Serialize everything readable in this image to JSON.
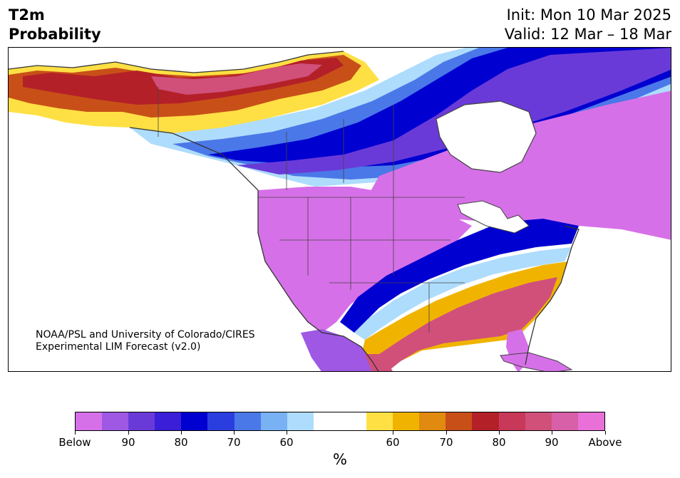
{
  "header": {
    "title_line1": "T2m",
    "title_line2": "Probability",
    "init": "Init: Mon 10 Mar 2025",
    "valid": "Valid: 12 Mar – 18 Mar"
  },
  "map": {
    "credit_line1": "NOAA/PSL and University of Colorado/CIRES",
    "credit_line2": "Experimental LIM Forecast (v2.0)",
    "region": "North America",
    "land_colors": {
      "below_high": "#d670e8",
      "below_mid": "#9e58e4",
      "below_low": "#6a3ad8",
      "below_deep": "#0000d0",
      "below_weak": "#4a78e8",
      "below_faint": "#aedcfc",
      "neutral": "#ffffff",
      "above_faint": "#ffe044",
      "above_weak": "#f0b400",
      "above_mid": "#c85018",
      "above_deep": "#b42028",
      "above_high": "#d0507a",
      "above_top": "#e870d8"
    }
  },
  "colorbar": {
    "colors": [
      "#d670e8",
      "#9e58e4",
      "#6a3ad8",
      "#3a1ed8",
      "#0000d0",
      "#2a3ee0",
      "#4a78e8",
      "#78b2f4",
      "#aedcfc",
      "#ffffff",
      "#ffffff",
      "#ffe044",
      "#f0b400",
      "#e08a10",
      "#c85018",
      "#b42028",
      "#c83858",
      "#d0507a",
      "#d860a8",
      "#e870d8"
    ],
    "tick_labels": [
      "Below",
      "90",
      "80",
      "70",
      "60",
      "60",
      "70",
      "80",
      "90",
      "Above"
    ],
    "unit": "%"
  }
}
